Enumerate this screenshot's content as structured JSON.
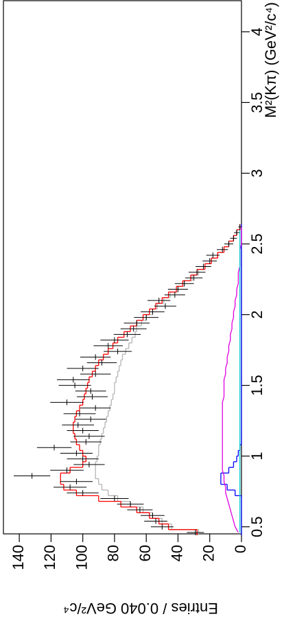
{
  "chart_data": {
    "type": "errorbar",
    "x_label": "M²(Kπ) (GeV²/c⁴)",
    "y_label": "Entries / 0.040 GeV²/c⁴",
    "xlim": [
      0.45,
      4.22
    ],
    "ylim": [
      0,
      150
    ],
    "xticks": [
      0.5,
      1,
      1.5,
      2,
      2.5,
      3,
      3.5,
      4
    ],
    "yticks": [
      0,
      20,
      40,
      60,
      80,
      100,
      120,
      140
    ],
    "color": "#000000",
    "x": [
      0.46,
      0.5,
      0.54,
      0.58,
      0.62,
      0.66,
      0.7,
      0.74,
      0.78,
      0.82,
      0.86,
      0.9,
      0.94,
      0.98,
      1.02,
      1.06,
      1.1,
      1.14,
      1.18,
      1.22,
      1.26,
      1.3,
      1.34,
      1.38,
      1.42,
      1.46,
      1.5,
      1.54,
      1.58,
      1.62,
      1.66,
      1.7,
      1.74,
      1.78,
      1.82,
      1.86,
      1.9,
      1.94,
      1.98,
      2.02,
      2.06,
      2.1,
      2.14,
      2.18,
      2.22,
      2.26,
      2.3,
      2.34,
      2.38,
      2.42,
      2.46,
      2.5,
      2.54,
      2.58,
      2.62
    ],
    "values": [
      29,
      50,
      54,
      56,
      64,
      70,
      80,
      100,
      108,
      104,
      132,
      110,
      96,
      100,
      104,
      118,
      98,
      96,
      100,
      103,
      95,
      102,
      92,
      110,
      94,
      95,
      105,
      106,
      92,
      100,
      88,
      92,
      78,
      84,
      80,
      72,
      68,
      66,
      60,
      56,
      48,
      52,
      42,
      40,
      36,
      30,
      28,
      24,
      20,
      18,
      12,
      8,
      5,
      3,
      1
    ],
    "errors": [
      5.4,
      7.1,
      7.3,
      7.5,
      8,
      8.4,
      8.9,
      10,
      10.4,
      10.2,
      11.5,
      10.5,
      9.8,
      10,
      10.2,
      10.9,
      9.9,
      9.8,
      10,
      10.1,
      9.7,
      10.1,
      9.6,
      10.5,
      9.7,
      9.7,
      10.2,
      10.3,
      9.6,
      10,
      9.4,
      9.6,
      8.8,
      9.2,
      8.9,
      8.5,
      8.2,
      8.1,
      7.7,
      7.5,
      6.9,
      7.2,
      6.5,
      6.3,
      6,
      5.5,
      5.3,
      4.9,
      4.5,
      4.2,
      3.5,
      2.8,
      2.2,
      1.7,
      1
    ],
    "series": [
      {
        "color": "#b4b4b4",
        "draw": "step",
        "values": [
          27,
          44,
          50,
          56,
          62,
          70,
          78,
          84,
          88,
          90,
          92,
          92,
          92,
          91,
          90,
          90,
          89,
          88,
          87,
          86,
          85,
          84,
          83,
          82,
          81,
          80,
          80,
          79,
          78,
          77,
          76,
          75,
          73,
          71,
          69,
          67,
          66,
          63,
          60,
          56,
          53,
          49,
          45,
          40,
          36,
          31,
          27,
          23,
          19,
          15,
          11,
          8,
          5,
          3,
          1
        ]
      },
      {
        "color": "#0000ff",
        "draw": "step",
        "values": [
          0,
          0,
          0,
          0,
          0,
          0,
          0,
          4,
          9,
          13,
          13,
          8,
          5,
          3,
          2,
          1,
          0,
          0,
          0,
          0,
          0,
          0,
          0,
          0,
          0,
          0,
          0,
          0,
          0,
          0,
          0,
          0,
          0,
          0,
          0,
          0,
          0,
          0,
          0,
          0,
          0,
          0,
          0,
          0,
          0,
          0,
          0,
          0,
          0,
          0,
          0,
          0,
          0,
          0,
          0
        ]
      },
      {
        "color": "#e000e0",
        "draw": "line",
        "values": [
          2,
          4,
          5,
          6,
          7,
          8,
          9,
          10,
          10,
          11,
          11,
          12,
          12,
          12,
          12,
          12,
          12,
          12,
          12,
          12,
          12,
          12,
          12,
          12,
          11,
          11,
          11,
          11,
          10,
          10,
          9,
          9,
          8,
          8,
          7,
          7,
          6,
          6,
          5,
          5,
          4,
          4,
          3,
          3,
          2,
          2,
          2,
          1,
          1,
          1,
          1,
          0,
          0,
          0,
          0
        ]
      },
      {
        "color": "#00c8d0",
        "draw": "line",
        "values": [
          1,
          1,
          1,
          1,
          1,
          1,
          1,
          1,
          1,
          1,
          1,
          1,
          1,
          1,
          1,
          1,
          1,
          1,
          1,
          1,
          1,
          1,
          1,
          1,
          1,
          1,
          1,
          1,
          1,
          1,
          1,
          1,
          1,
          1,
          1,
          1,
          1,
          1,
          1,
          1,
          1,
          1,
          1,
          1,
          1,
          1,
          1,
          1,
          1,
          1,
          1,
          1,
          1,
          1,
          1
        ]
      },
      {
        "color": "#ff0000",
        "draw": "step",
        "values": [
          28,
          46,
          52,
          58,
          66,
          76,
          90,
          104,
          112,
          114,
          114,
          108,
          100,
          98,
          100,
          102,
          104,
          105,
          106,
          106,
          105,
          104,
          102,
          100,
          99,
          98,
          97,
          96,
          94,
          92,
          90,
          87,
          84,
          81,
          78,
          74,
          70,
          66,
          62,
          58,
          54,
          50,
          46,
          41,
          37,
          32,
          28,
          23,
          19,
          15,
          11,
          8,
          5,
          3,
          1
        ]
      }
    ]
  }
}
